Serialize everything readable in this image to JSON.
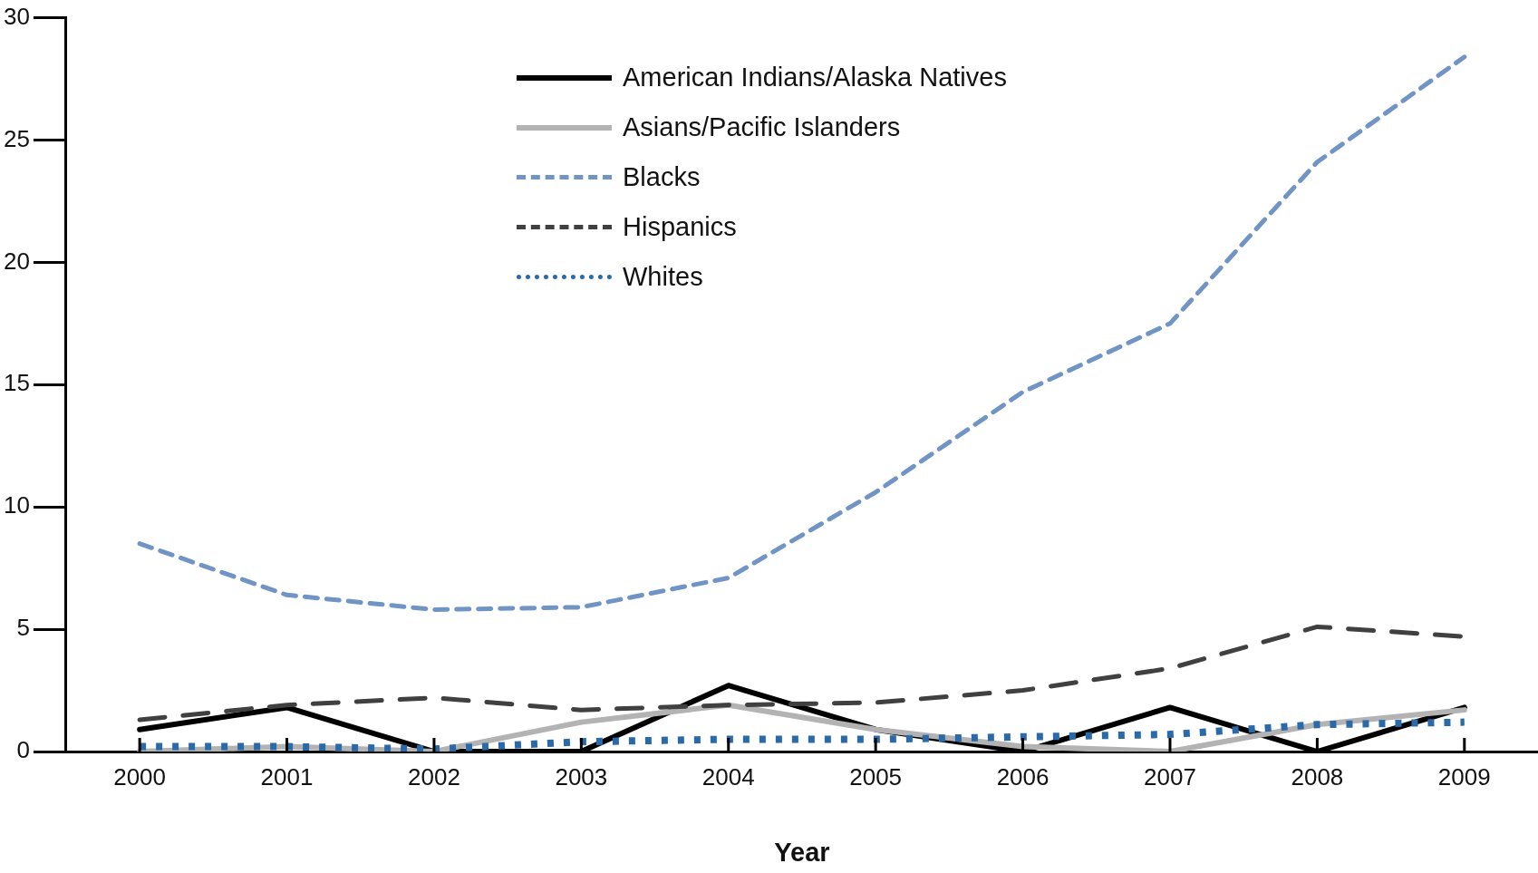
{
  "chart_data": {
    "type": "line",
    "xlabel": "Year",
    "categories": [
      "2000",
      "2001",
      "2002",
      "2003",
      "2004",
      "2005",
      "2006",
      "2007",
      "2008",
      "2009"
    ],
    "ylim": [
      0,
      30
    ],
    "yticks": [
      0,
      5,
      10,
      15,
      20,
      25,
      30
    ],
    "grid": false,
    "legend": "top",
    "marker": "none",
    "series": [
      {
        "name": "American Indians/Alaska Natives",
        "color": "#000000",
        "line_style": "solid",
        "values": [
          0.9,
          1.8,
          0,
          0,
          2.7,
          0.9,
          0,
          1.8,
          0,
          1.8
        ]
      },
      {
        "name": "Asians/Pacific Islanders",
        "color": "#b3b3b3",
        "line_style": "solid",
        "values": [
          0,
          0.2,
          0,
          1.2,
          1.9,
          0.9,
          0.2,
          0,
          1.1,
          1.7
        ]
      },
      {
        "name": "Blacks",
        "color": "#7094c4",
        "line_style": "dashed",
        "values": [
          8.5,
          6.4,
          5.8,
          5.9,
          7.1,
          10.6,
          14.7,
          17.5,
          24.1,
          28.4
        ]
      },
      {
        "name": "Hispanics",
        "color": "#404040",
        "line_style": "dashed",
        "values": [
          1.3,
          1.9,
          2.2,
          1.7,
          1.9,
          2.0,
          2.5,
          3.4,
          5.1,
          4.7
        ]
      },
      {
        "name": "Whites",
        "color": "#2a6aa8",
        "line_style": "dotted",
        "values": [
          0.2,
          0.2,
          0.1,
          0.4,
          0.5,
          0.5,
          0.6,
          0.7,
          1.1,
          1.2
        ]
      }
    ]
  }
}
